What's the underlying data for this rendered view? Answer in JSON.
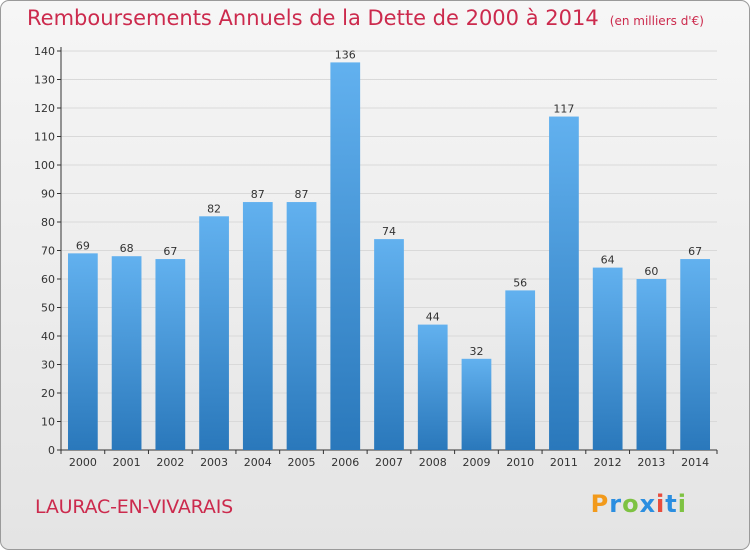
{
  "header": {
    "title": "Remboursements Annuels de la Dette de 2000 à 2014",
    "subtitle": "(en milliers d'€)"
  },
  "footer": {
    "commune": "LAURAC-EN-VIVARAIS",
    "logo": "Proxiti"
  },
  "colors": {
    "bar_top": "#62b1ef",
    "bar_bottom": "#2a78bb",
    "title": "#cc2a4d",
    "axis": "#333333",
    "grid": "#d9d9d9"
  },
  "chart_data": {
    "type": "bar",
    "title": "Remboursements Annuels de la Dette de 2000 à 2014",
    "subtitle": "(en milliers d'€)",
    "categories": [
      "2000",
      "2001",
      "2002",
      "2003",
      "2004",
      "2005",
      "2006",
      "2007",
      "2008",
      "2009",
      "2010",
      "2011",
      "2012",
      "2013",
      "2014"
    ],
    "values": [
      69,
      68,
      67,
      82,
      87,
      87,
      136,
      74,
      44,
      32,
      56,
      117,
      64,
      60,
      67
    ],
    "ylim": [
      0,
      140
    ],
    "yticks": [
      0,
      10,
      20,
      30,
      40,
      50,
      60,
      70,
      80,
      90,
      100,
      110,
      120,
      130,
      140
    ],
    "grid": true,
    "xlabel": "",
    "ylabel": ""
  }
}
